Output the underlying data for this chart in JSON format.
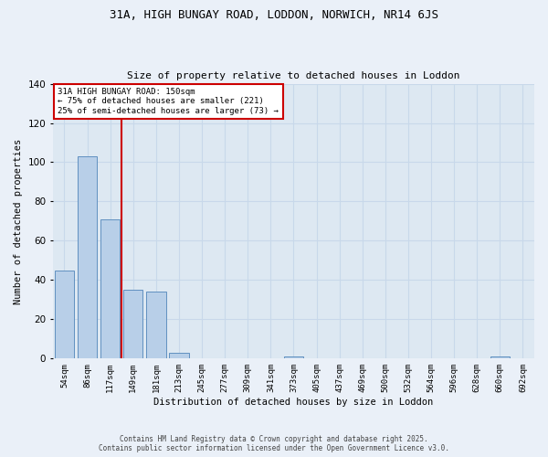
{
  "title1": "31A, HIGH BUNGAY ROAD, LODDON, NORWICH, NR14 6JS",
  "title2": "Size of property relative to detached houses in Loddon",
  "xlabel": "Distribution of detached houses by size in Loddon",
  "ylabel": "Number of detached properties",
  "categories": [
    "54sqm",
    "86sqm",
    "117sqm",
    "149sqm",
    "181sqm",
    "213sqm",
    "245sqm",
    "277sqm",
    "309sqm",
    "341sqm",
    "373sqm",
    "405sqm",
    "437sqm",
    "469sqm",
    "500sqm",
    "532sqm",
    "564sqm",
    "596sqm",
    "628sqm",
    "660sqm",
    "692sqm"
  ],
  "values": [
    45,
    103,
    71,
    35,
    34,
    3,
    0,
    0,
    0,
    0,
    1,
    0,
    0,
    0,
    0,
    0,
    0,
    0,
    0,
    1,
    0
  ],
  "bar_color": "#b8cfe8",
  "bar_edge_color": "#6090c0",
  "vline_color": "#cc0000",
  "annotation_text": "31A HIGH BUNGAY ROAD: 150sqm\n← 75% of detached houses are smaller (221)\n25% of semi-detached houses are larger (73) →",
  "annotation_box_color": "#ffffff",
  "annotation_edge_color": "#cc0000",
  "footer1": "Contains HM Land Registry data © Crown copyright and database right 2025.",
  "footer2": "Contains public sector information licensed under the Open Government Licence v3.0.",
  "ylim": [
    0,
    140
  ],
  "grid_color": "#c8d8ea",
  "bg_color": "#dde8f2",
  "fig_bg_color": "#eaf0f8"
}
